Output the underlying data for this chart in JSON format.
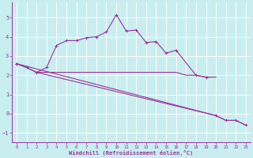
{
  "bg_color": "#c8eef0",
  "grid_color": "#ffffff",
  "line_color": "#993399",
  "xlabel": "Windchill (Refroidissement éolien,°C)",
  "ylim": [
    -1.5,
    5.8
  ],
  "xlim": [
    -0.5,
    23.5
  ],
  "yticks": [
    -1,
    0,
    1,
    2,
    3,
    4,
    5
  ],
  "xticks": [
    0,
    1,
    2,
    3,
    4,
    5,
    6,
    7,
    8,
    9,
    10,
    11,
    12,
    13,
    14,
    15,
    16,
    17,
    18,
    19,
    20,
    21,
    22,
    23
  ],
  "line1_x": [
    0,
    1,
    2,
    3,
    4,
    5,
    6,
    7,
    8,
    9,
    10,
    11,
    12,
    13,
    14,
    15,
    16,
    18,
    19
  ],
  "line1_y": [
    2.6,
    2.4,
    2.15,
    2.4,
    3.55,
    3.8,
    3.8,
    3.95,
    4.0,
    4.25,
    5.15,
    4.3,
    4.35,
    3.7,
    3.75,
    3.15,
    3.3,
    2.0,
    1.9
  ],
  "line2_x": [
    0,
    1,
    2,
    3,
    4,
    5,
    6,
    7,
    8,
    9,
    10,
    11,
    12,
    13,
    14,
    15,
    16,
    17,
    18,
    19,
    20
  ],
  "line2_y": [
    2.6,
    2.4,
    2.15,
    2.15,
    2.15,
    2.15,
    2.15,
    2.15,
    2.15,
    2.15,
    2.15,
    2.15,
    2.15,
    2.15,
    2.15,
    2.15,
    2.15,
    2.0,
    2.0,
    1.9,
    1.9
  ],
  "line3_x": [
    0,
    20,
    21,
    22,
    23
  ],
  "line3_y": [
    2.6,
    -0.1,
    -0.35,
    -0.35,
    -0.6
  ],
  "line4_x": [
    2,
    20,
    21,
    22,
    23
  ],
  "line4_y": [
    2.15,
    -0.1,
    -0.35,
    -0.35,
    -0.6
  ]
}
